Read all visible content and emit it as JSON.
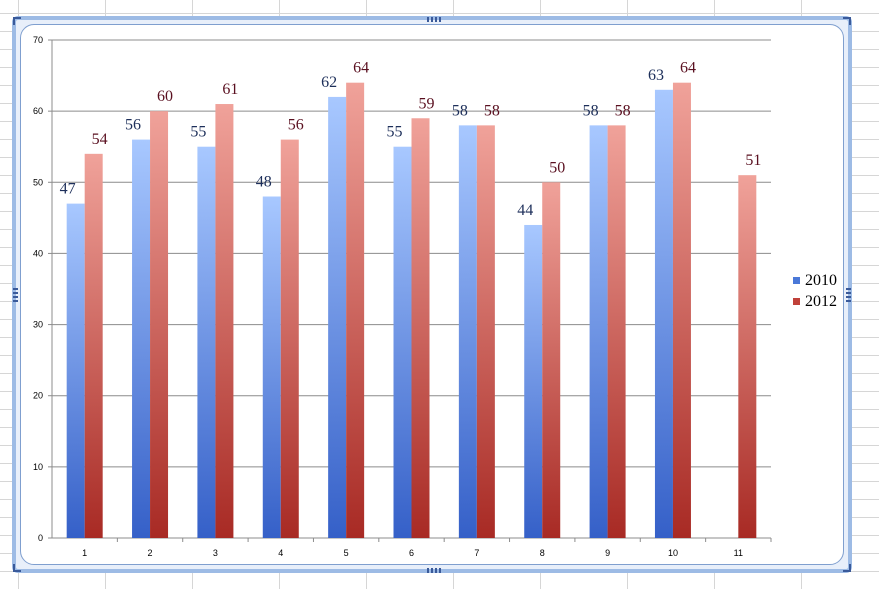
{
  "chart_data": {
    "type": "bar",
    "categories": [
      "1",
      "2",
      "3",
      "4",
      "5",
      "6",
      "7",
      "8",
      "9",
      "10",
      "11"
    ],
    "series": [
      {
        "name": "2010",
        "values": [
          47,
          56,
          55,
          48,
          62,
          55,
          58,
          44,
          58,
          63,
          null
        ],
        "color": "#4a78d8",
        "label_color": "#1d2f5a"
      },
      {
        "name": "2012",
        "values": [
          54,
          60,
          61,
          56,
          64,
          59,
          58,
          50,
          58,
          64,
          51
        ],
        "color": "#c0413a",
        "label_color": "#5a1020"
      }
    ],
    "yticks": [
      "0",
      "10",
      "20",
      "30",
      "40",
      "50",
      "60",
      "70"
    ],
    "ylim": [
      0,
      70
    ],
    "grid": true,
    "legend_position": "right",
    "title": "",
    "xlabel": "",
    "ylabel": ""
  }
}
